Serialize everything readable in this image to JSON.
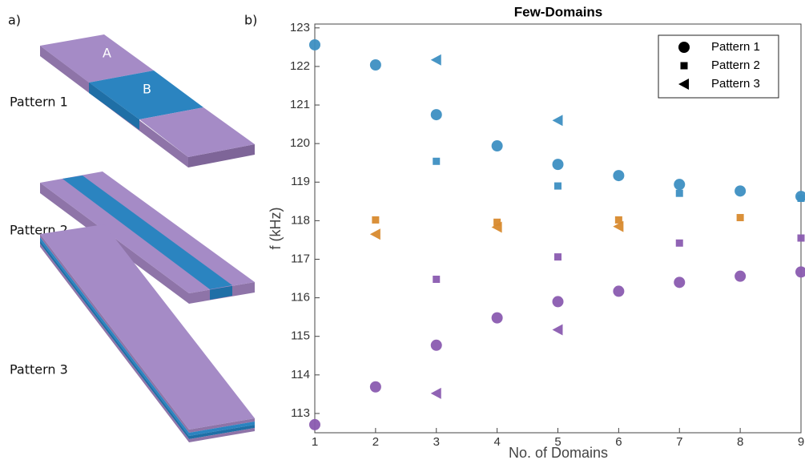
{
  "panel_labels": [
    "a)",
    "b)"
  ],
  "diagram": {
    "patterns": [
      {
        "label": "Pattern 1",
        "regions": [
          "A",
          "B"
        ]
      },
      {
        "label": "Pattern 2"
      },
      {
        "label": "Pattern 3"
      }
    ]
  },
  "chart_data": {
    "type": "scatter",
    "title": "Few-Domains",
    "xlabel": "No. of Domains",
    "ylabel": "f (kHz)",
    "xlim": [
      1,
      9
    ],
    "ylim": [
      112.5,
      123.1
    ],
    "xticks": [
      1,
      2,
      3,
      4,
      5,
      6,
      7,
      8,
      9
    ],
    "yticks": [
      113,
      114,
      115,
      116,
      117,
      118,
      119,
      120,
      121,
      122,
      123
    ],
    "legend": "upper right",
    "legend_color": "#000000",
    "series": [
      {
        "name": "Pattern 1",
        "marker": "circle",
        "x": [
          1,
          1,
          2,
          2,
          3,
          3,
          4,
          4,
          5,
          5,
          6,
          6,
          7,
          7,
          8,
          8,
          9,
          9
        ],
        "values": [
          122.56,
          112.71,
          122.04,
          113.69,
          120.75,
          114.77,
          119.94,
          115.48,
          119.46,
          115.9,
          119.17,
          116.17,
          118.94,
          116.4,
          118.77,
          116.56,
          118.63,
          116.67
        ],
        "colors": [
          "#3d8fc2",
          "#8a5bb0",
          "#3d8fc2",
          "#8a5bb0",
          "#3d8fc2",
          "#8a5bb0",
          "#3d8fc2",
          "#8a5bb0",
          "#3d8fc2",
          "#8a5bb0",
          "#3d8fc2",
          "#8a5bb0",
          "#3d8fc2",
          "#8a5bb0",
          "#3d8fc2",
          "#8a5bb0",
          "#3d8fc2",
          "#8a5bb0"
        ]
      },
      {
        "name": "Pattern 2",
        "marker": "square",
        "x": [
          2,
          3,
          3,
          4,
          5,
          5,
          6,
          7,
          7,
          8,
          9,
          9
        ],
        "values": [
          118.02,
          119.54,
          116.48,
          117.96,
          118.9,
          117.06,
          118.02,
          118.71,
          117.42,
          118.08,
          118.58,
          117.55
        ],
        "colors": [
          "#d88a2e",
          "#3d8fc2",
          "#8a5bb0",
          "#d88a2e",
          "#3d8fc2",
          "#8a5bb0",
          "#d88a2e",
          "#3d8fc2",
          "#8a5bb0",
          "#d88a2e",
          "#3d8fc2",
          "#8a5bb0"
        ]
      },
      {
        "name": "Pattern 3",
        "marker": "triangle-left",
        "x": [
          2,
          3,
          3,
          4,
          5,
          5,
          6
        ],
        "values": [
          117.65,
          122.17,
          113.52,
          117.83,
          120.6,
          115.17,
          117.85
        ],
        "colors": [
          "#d88a2e",
          "#3d8fc2",
          "#8a5bb0",
          "#d88a2e",
          "#3d8fc2",
          "#8a5bb0",
          "#d88a2e"
        ]
      }
    ]
  }
}
